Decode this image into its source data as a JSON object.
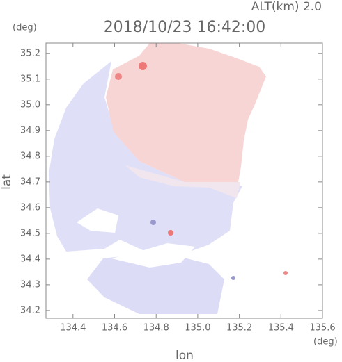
{
  "chart_data": {
    "type": "field",
    "title": "2018/10/23 16:42:00",
    "subtitle": "ALT(km) 2.0",
    "y_unit": "(deg)",
    "x_unit": "(deg)",
    "x_label": "lon",
    "y_label": "lat",
    "xlim": [
      134.27,
      135.6
    ],
    "ylim": [
      34.17,
      35.24
    ],
    "xticks": [
      134.4,
      134.6,
      134.8,
      {
        "value": 135,
        "label": "135.0"
      },
      135.2,
      135.4,
      135.6
    ],
    "yticks": [
      34.2,
      34.3,
      34.4,
      34.5,
      34.6,
      34.7,
      34.8,
      34.9,
      {
        "value": 35,
        "label": "35.0"
      },
      35.1,
      35.2
    ]
  }
}
